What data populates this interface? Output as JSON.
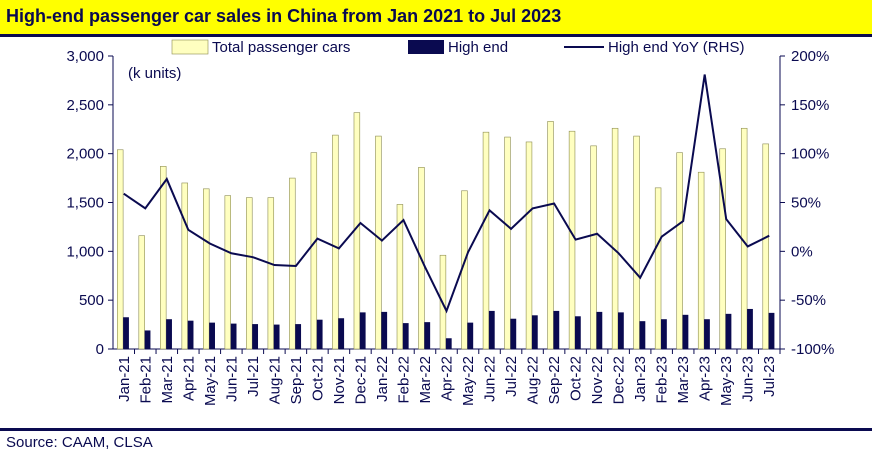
{
  "header": {
    "title": "High-end passenger car sales in China from Jan 2021 to Jul 2023"
  },
  "footer": {
    "source": "Source: CAAM, CLSA"
  },
  "colors": {
    "total_bar": "#ffffc0",
    "total_bar_stroke": "#8c8c50",
    "high_end_bar": "#0a0a50",
    "line": "#0a0a50",
    "accent": "#ffff00"
  },
  "chart_data": {
    "type": "bar",
    "title": "High-end passenger car sales in China from Jan 2021 to Jul 2023",
    "units_label": "(k units)",
    "categories": [
      "Jan-21",
      "Feb-21",
      "Mar-21",
      "Apr-21",
      "May-21",
      "Jun-21",
      "Jul-21",
      "Aug-21",
      "Sep-21",
      "Oct-21",
      "Nov-21",
      "Dec-21",
      "Jan-22",
      "Feb-22",
      "Mar-22",
      "Apr-22",
      "May-22",
      "Jun-22",
      "Jul-22",
      "Aug-22",
      "Sep-22",
      "Oct-22",
      "Nov-22",
      "Dec-22",
      "Jan-23",
      "Feb-23",
      "Mar-23",
      "Apr-23",
      "May-23",
      "Jun-23",
      "Jul-23"
    ],
    "series": [
      {
        "name": "Total passenger cars",
        "type": "bar",
        "axis": "left",
        "values": [
          2040,
          1160,
          1870,
          1700,
          1640,
          1570,
          1550,
          1550,
          1750,
          2010,
          2190,
          2420,
          2180,
          1480,
          1860,
          960,
          1620,
          2220,
          2170,
          2120,
          2330,
          2230,
          2080,
          2260,
          2180,
          1650,
          2010,
          1810,
          2050,
          2260,
          2100
        ]
      },
      {
        "name": "High end",
        "type": "bar",
        "axis": "left",
        "values": [
          325,
          190,
          305,
          290,
          270,
          260,
          255,
          250,
          255,
          300,
          315,
          375,
          380,
          265,
          275,
          110,
          270,
          390,
          310,
          345,
          390,
          335,
          380,
          375,
          285,
          305,
          350,
          305,
          360,
          410,
          370
        ]
      },
      {
        "name": "High end YoY (RHS)",
        "type": "line",
        "axis": "right",
        "values": [
          59,
          44,
          74,
          22,
          8,
          -2,
          -6,
          -14,
          -15,
          13,
          3,
          29,
          11,
          32,
          -16,
          -61,
          -1,
          42,
          23,
          44,
          49,
          12,
          18,
          -2,
          -27,
          15,
          31,
          181,
          33,
          5,
          16
        ]
      }
    ],
    "y_left": {
      "min": 0,
      "max": 3000,
      "step": 500,
      "tick_labels": [
        "0",
        "500",
        "1,000",
        "1,500",
        "2,000",
        "2,500",
        "3,000"
      ]
    },
    "y_right": {
      "min": -100,
      "max": 200,
      "step": 50,
      "tick_labels": [
        "-100%",
        "-50%",
        "0%",
        "50%",
        "100%",
        "150%",
        "200%"
      ]
    },
    "grid": false,
    "legend_position": "top"
  }
}
